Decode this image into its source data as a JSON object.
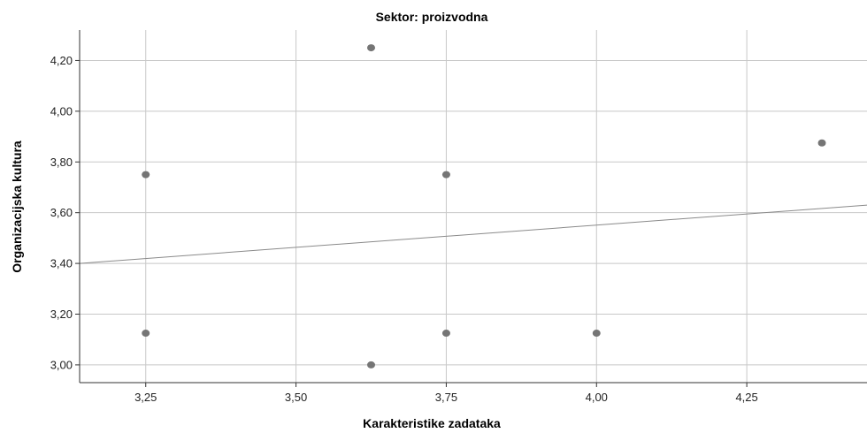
{
  "chart_data": {
    "type": "scatter",
    "title": "Sektor: proizvodna",
    "xlabel": "Karakteristike zadataka",
    "ylabel": "Organizacijska kultura",
    "xlim": [
      3.14,
      4.45
    ],
    "ylim": [
      2.93,
      4.32
    ],
    "x_ticks": [
      3.25,
      3.5,
      3.75,
      4.0,
      4.25
    ],
    "x_tick_labels": [
      "3,25",
      "3,50",
      "3,75",
      "4,00",
      "4,25"
    ],
    "y_ticks": [
      3.0,
      3.2,
      3.4,
      3.6,
      3.8,
      4.0,
      4.2
    ],
    "y_tick_labels": [
      "3,00",
      "3,20",
      "3,40",
      "3,60",
      "3,80",
      "4,00",
      "4,20"
    ],
    "grid": true,
    "points": [
      {
        "x": 3.25,
        "y": 3.75
      },
      {
        "x": 3.25,
        "y": 3.125
      },
      {
        "x": 3.625,
        "y": 4.25
      },
      {
        "x": 3.625,
        "y": 3.0
      },
      {
        "x": 3.75,
        "y": 3.75
      },
      {
        "x": 3.75,
        "y": 3.125
      },
      {
        "x": 4.0,
        "y": 3.125
      },
      {
        "x": 4.375,
        "y": 3.875
      }
    ],
    "fit_line": {
      "x": [
        3.14,
        4.45
      ],
      "y": [
        3.4,
        3.63
      ]
    },
    "colors": {
      "point": "#757575",
      "grid": "#c8c8c8",
      "fit": "#8a8a8a",
      "axis": "#333333"
    }
  }
}
